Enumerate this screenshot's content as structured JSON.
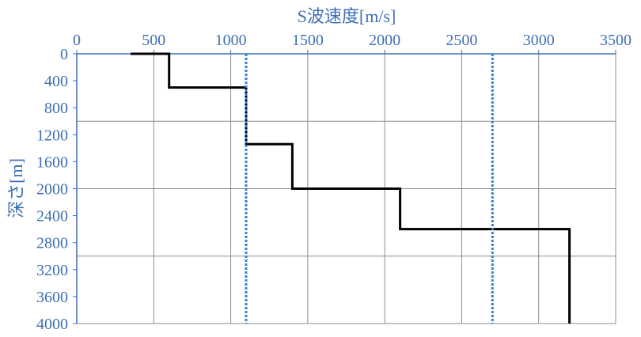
{
  "chart_data": {
    "type": "line",
    "title": "",
    "xlabel": "S波速度[m/s]",
    "ylabel": "深さ[m]",
    "x_axis_position": "top",
    "y_axis_inverted": true,
    "xlim": [
      0,
      3500
    ],
    "ylim": [
      0,
      4000
    ],
    "x_ticks": [
      "0",
      "500",
      "1000",
      "1500",
      "2000",
      "2500",
      "3000",
      "3500"
    ],
    "y_ticks": [
      "0",
      "400",
      "800",
      "1200",
      "1600",
      "2000",
      "2400",
      "2800",
      "3200",
      "3600",
      "4000"
    ],
    "grid": {
      "vertical_every": 500,
      "horizontal_every": 1000
    },
    "series": [
      {
        "style": "solid",
        "color": "#000000",
        "points": [
          [
            350,
            0
          ],
          [
            600,
            0
          ],
          [
            600,
            500
          ],
          [
            1100,
            500
          ],
          [
            1100,
            1340
          ],
          [
            1400,
            1340
          ],
          [
            1400,
            2000
          ],
          [
            2100,
            2000
          ],
          [
            2100,
            2600
          ],
          [
            3200,
            2600
          ],
          [
            3200,
            4000
          ]
        ]
      },
      {
        "style": "dotted",
        "color": "#3b7dd8",
        "points": [
          [
            1100,
            0
          ],
          [
            1100,
            4000
          ]
        ]
      },
      {
        "style": "dotted",
        "color": "#3b7dd8",
        "points": [
          [
            2700,
            0
          ],
          [
            2700,
            4000
          ]
        ]
      }
    ]
  }
}
